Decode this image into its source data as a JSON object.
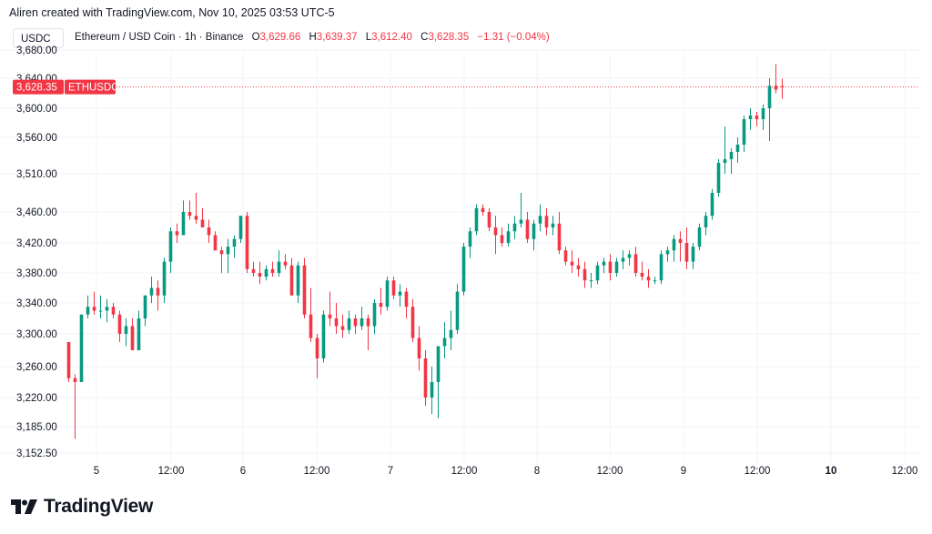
{
  "header": {
    "attribution": "Aliren created with TradingView.com, Nov 10, 2025 03:53 UTC-5"
  },
  "toolbar": {
    "symbol": "USDC",
    "instrument": "Ethereum / USD Coin · 1h · Binance",
    "o_label": "O",
    "o_value": "3,629.66",
    "h_label": "H",
    "h_value": "3,639.37",
    "l_label": "L",
    "l_value": "3,612.40",
    "c_label": "C",
    "c_value": "3,628.35",
    "change": "−1.31 (−0.04%)"
  },
  "price_tag": {
    "price": "3,628.35",
    "ticker": "ETHUSDC"
  },
  "brand": {
    "name": "TradingView"
  },
  "colors": {
    "up": "#089981",
    "down": "#f23645",
    "grid": "#f0f3fa",
    "axis_text": "#131722"
  },
  "chart_data": {
    "type": "candlestick",
    "title": "Ethereum / USD Coin · 1h · Binance",
    "last_price": 3628.35,
    "ylim": [
      3152.5,
      3680
    ],
    "y_ticks": [
      "3,152.50",
      "3,185.00",
      "3,220.00",
      "3,260.00",
      "3,300.00",
      "3,340.00",
      "3,380.00",
      "3,420.00",
      "3,460.00",
      "3,510.00",
      "3,560.00",
      "3,600.00",
      "3,640.00",
      "3,680.00"
    ],
    "x_ticks": [
      "5",
      "12:00",
      "6",
      "12:00",
      "7",
      "12:00",
      "8",
      "12:00",
      "9",
      "12:00",
      "10",
      "12:00"
    ],
    "x_ticks_bold": [
      "10"
    ],
    "grid": true,
    "candles": [
      [
        3290,
        3290,
        3240,
        3245
      ],
      [
        3245,
        3250,
        3170,
        3240
      ],
      [
        3240,
        3325,
        3240,
        3325
      ],
      [
        3325,
        3350,
        3320,
        3335
      ],
      [
        3335,
        3355,
        3325,
        3330
      ],
      [
        3330,
        3350,
        3320,
        3330
      ],
      [
        3330,
        3345,
        3315,
        3335
      ],
      [
        3335,
        3340,
        3320,
        3325
      ],
      [
        3325,
        3330,
        3290,
        3300
      ],
      [
        3300,
        3320,
        3285,
        3310
      ],
      [
        3310,
        3320,
        3280,
        3280
      ],
      [
        3280,
        3330,
        3280,
        3320
      ],
      [
        3320,
        3350,
        3310,
        3350
      ],
      [
        3350,
        3375,
        3340,
        3360
      ],
      [
        3360,
        3370,
        3330,
        3350
      ],
      [
        3350,
        3400,
        3340,
        3395
      ],
      [
        3395,
        3440,
        3380,
        3435
      ],
      [
        3435,
        3445,
        3420,
        3430
      ],
      [
        3430,
        3475,
        3430,
        3460
      ],
      [
        3460,
        3475,
        3450,
        3455
      ],
      [
        3455,
        3485,
        3445,
        3450
      ],
      [
        3450,
        3465,
        3445,
        3440
      ],
      [
        3440,
        3450,
        3420,
        3430
      ],
      [
        3430,
        3435,
        3410,
        3410
      ],
      [
        3410,
        3415,
        3380,
        3405
      ],
      [
        3405,
        3425,
        3380,
        3415
      ],
      [
        3415,
        3430,
        3400,
        3425
      ],
      [
        3425,
        3455,
        3420,
        3455
      ],
      [
        3455,
        3460,
        3380,
        3385
      ],
      [
        3385,
        3395,
        3375,
        3380
      ],
      [
        3380,
        3395,
        3365,
        3375
      ],
      [
        3375,
        3390,
        3370,
        3385
      ],
      [
        3385,
        3395,
        3375,
        3380
      ],
      [
        3380,
        3410,
        3375,
        3395
      ],
      [
        3395,
        3405,
        3385,
        3390
      ],
      [
        3390,
        3400,
        3350,
        3350
      ],
      [
        3350,
        3395,
        3340,
        3390
      ],
      [
        3390,
        3400,
        3320,
        3325
      ],
      [
        3325,
        3360,
        3290,
        3295
      ],
      [
        3295,
        3300,
        3245,
        3270
      ],
      [
        3270,
        3330,
        3265,
        3325
      ],
      [
        3325,
        3355,
        3310,
        3320
      ],
      [
        3320,
        3340,
        3300,
        3310
      ],
      [
        3310,
        3325,
        3295,
        3305
      ],
      [
        3305,
        3330,
        3300,
        3320
      ],
      [
        3320,
        3325,
        3300,
        3310
      ],
      [
        3310,
        3335,
        3305,
        3320
      ],
      [
        3320,
        3325,
        3280,
        3310
      ],
      [
        3310,
        3345,
        3300,
        3340
      ],
      [
        3340,
        3360,
        3325,
        3335
      ],
      [
        3335,
        3375,
        3330,
        3370
      ],
      [
        3370,
        3375,
        3345,
        3350
      ],
      [
        3350,
        3365,
        3335,
        3355
      ],
      [
        3355,
        3360,
        3320,
        3335
      ],
      [
        3335,
        3345,
        3290,
        3295
      ],
      [
        3295,
        3310,
        3255,
        3270
      ],
      [
        3270,
        3280,
        3210,
        3220
      ],
      [
        3220,
        3260,
        3200,
        3240
      ],
      [
        3240,
        3285,
        3195,
        3285
      ],
      [
        3285,
        3315,
        3270,
        3295
      ],
      [
        3295,
        3330,
        3280,
        3305
      ],
      [
        3305,
        3365,
        3300,
        3355
      ],
      [
        3355,
        3420,
        3350,
        3415
      ],
      [
        3415,
        3440,
        3400,
        3435
      ],
      [
        3435,
        3470,
        3430,
        3465
      ],
      [
        3465,
        3470,
        3455,
        3460
      ],
      [
        3460,
        3465,
        3435,
        3440
      ],
      [
        3440,
        3455,
        3405,
        3430
      ],
      [
        3430,
        3440,
        3415,
        3420
      ],
      [
        3420,
        3445,
        3415,
        3435
      ],
      [
        3435,
        3455,
        3425,
        3445
      ],
      [
        3445,
        3485,
        3440,
        3450
      ],
      [
        3450,
        3460,
        3420,
        3425
      ],
      [
        3425,
        3450,
        3410,
        3445
      ],
      [
        3445,
        3470,
        3435,
        3455
      ],
      [
        3455,
        3465,
        3430,
        3440
      ],
      [
        3440,
        3455,
        3430,
        3445
      ],
      [
        3445,
        3460,
        3405,
        3410
      ],
      [
        3410,
        3415,
        3390,
        3395
      ],
      [
        3395,
        3410,
        3380,
        3390
      ],
      [
        3390,
        3400,
        3375,
        3385
      ],
      [
        3385,
        3395,
        3360,
        3370
      ],
      [
        3370,
        3380,
        3360,
        3370
      ],
      [
        3370,
        3395,
        3365,
        3390
      ],
      [
        3390,
        3400,
        3380,
        3395
      ],
      [
        3395,
        3405,
        3370,
        3380
      ],
      [
        3380,
        3400,
        3375,
        3395
      ],
      [
        3395,
        3410,
        3385,
        3400
      ],
      [
        3400,
        3410,
        3390,
        3405
      ],
      [
        3405,
        3415,
        3375,
        3380
      ],
      [
        3380,
        3395,
        3370,
        3375
      ],
      [
        3375,
        3385,
        3360,
        3370
      ],
      [
        3370,
        3375,
        3365,
        3370
      ],
      [
        3370,
        3410,
        3365,
        3405
      ],
      [
        3405,
        3415,
        3395,
        3410
      ],
      [
        3410,
        3430,
        3395,
        3425
      ],
      [
        3425,
        3435,
        3395,
        3420
      ],
      [
        3420,
        3440,
        3385,
        3395
      ],
      [
        3395,
        3420,
        3385,
        3415
      ],
      [
        3415,
        3445,
        3410,
        3440
      ],
      [
        3440,
        3460,
        3430,
        3455
      ],
      [
        3455,
        3490,
        3450,
        3485
      ],
      [
        3485,
        3530,
        3480,
        3525
      ],
      [
        3525,
        3575,
        3510,
        3530
      ],
      [
        3530,
        3545,
        3510,
        3540
      ],
      [
        3540,
        3560,
        3525,
        3550
      ],
      [
        3550,
        3590,
        3540,
        3585
      ],
      [
        3585,
        3600,
        3570,
        3590
      ],
      [
        3590,
        3595,
        3575,
        3585
      ],
      [
        3585,
        3605,
        3570,
        3600
      ],
      [
        3600,
        3640,
        3555,
        3630
      ],
      [
        3630,
        3660,
        3620,
        3625
      ],
      [
        3629.66,
        3639.37,
        3612.4,
        3628.35
      ]
    ]
  }
}
